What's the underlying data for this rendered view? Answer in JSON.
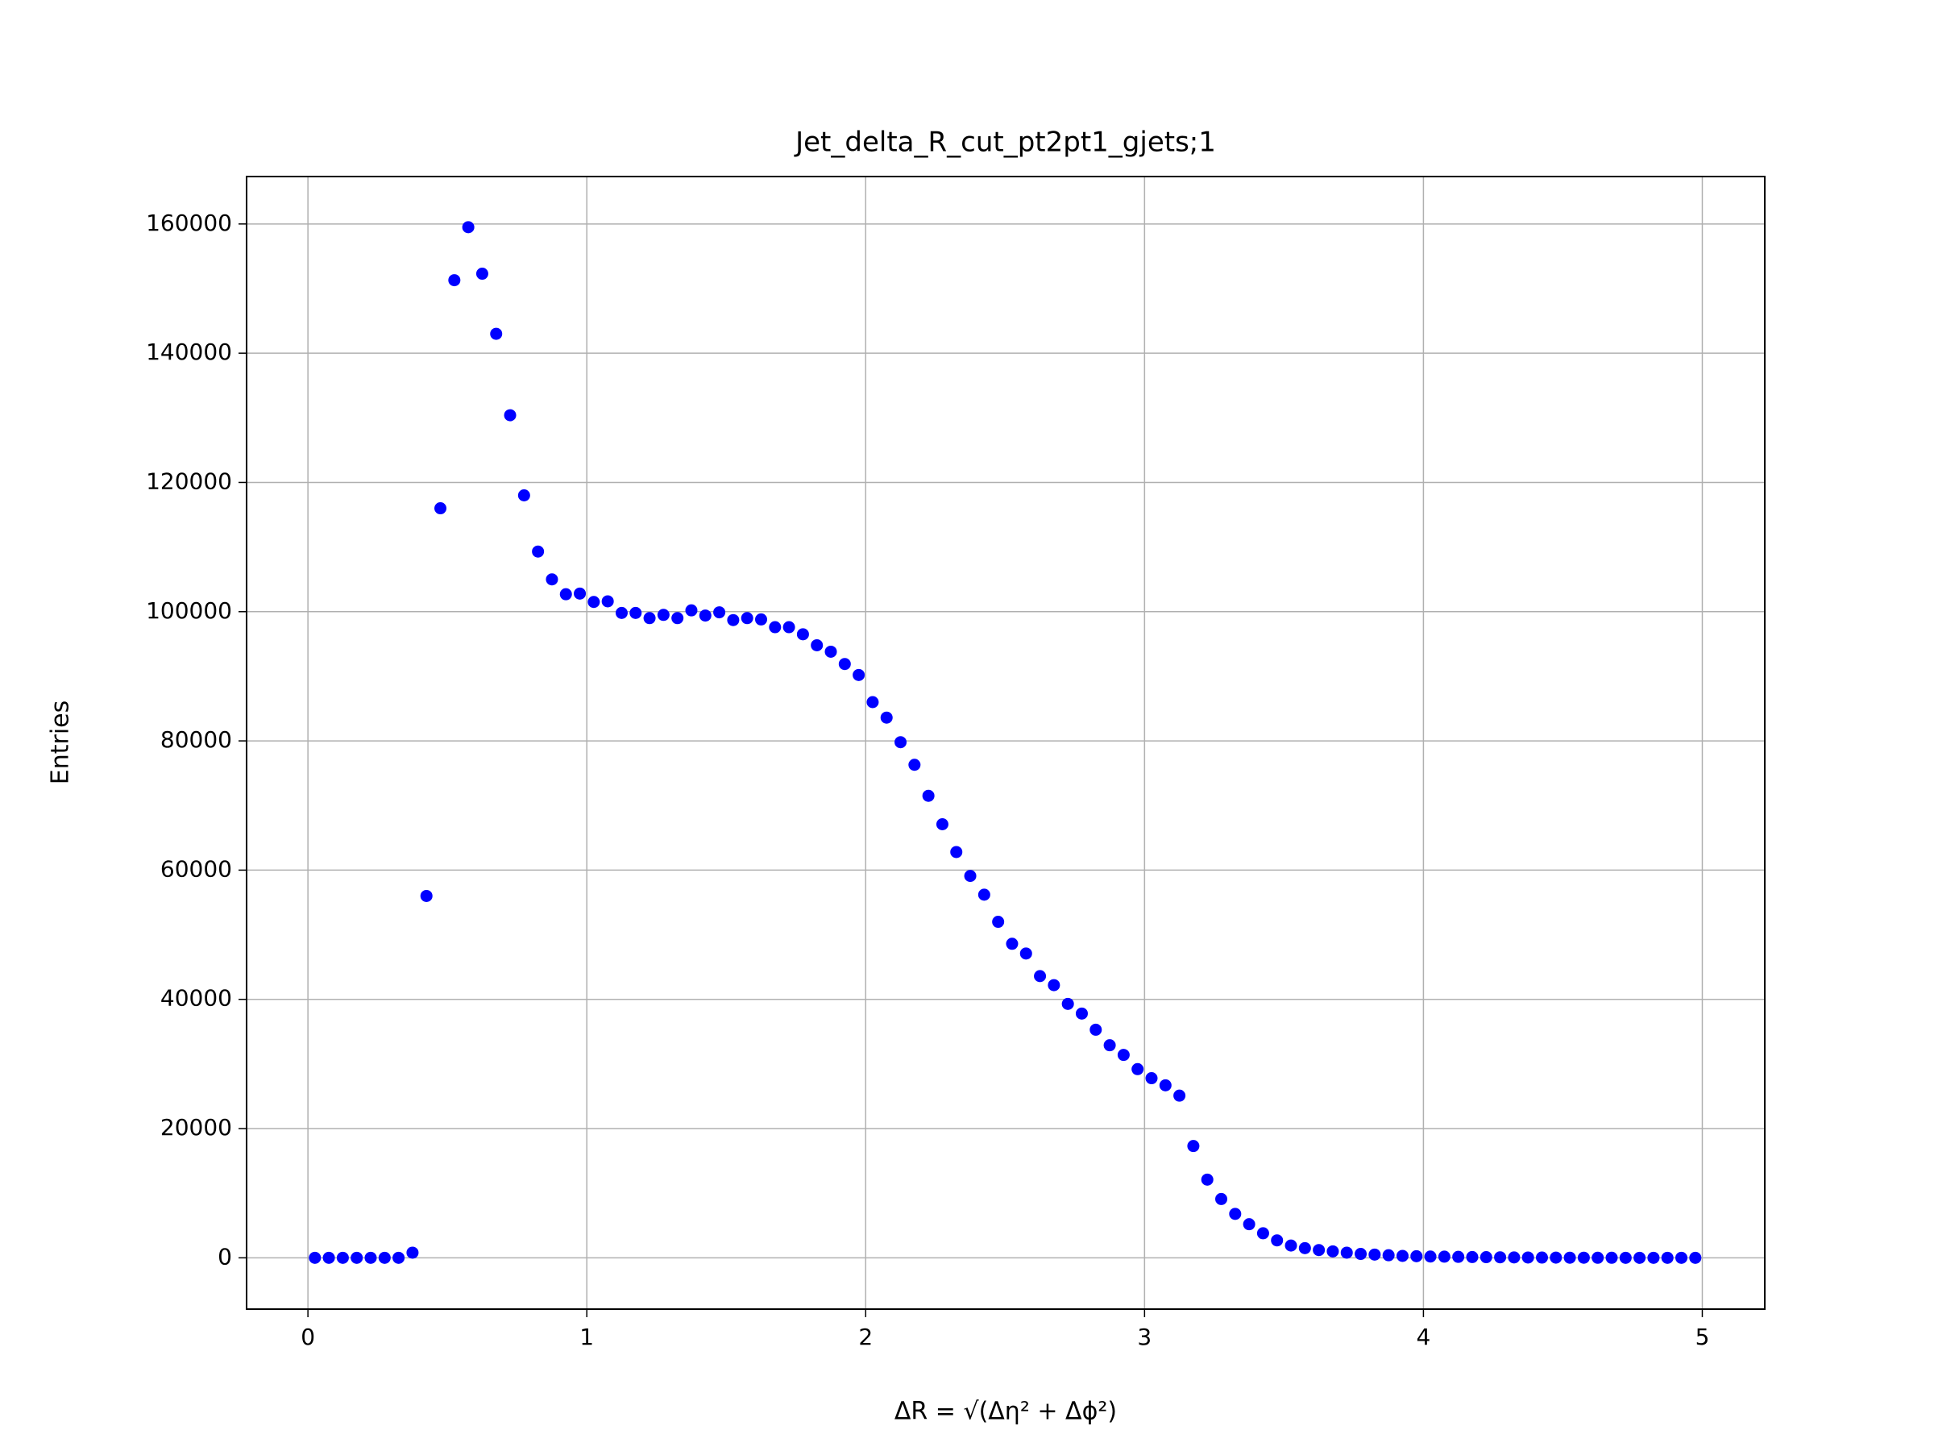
{
  "chart_data": {
    "type": "scatter",
    "title": "Jet_delta_R_cut_pt2pt1_gjets;1",
    "x_label": "ΔR = √(Δη² + Δϕ²)",
    "y_label": "Entries",
    "color": "#0000ff",
    "grid": true,
    "xlim": [
      -0.22,
      5.224
    ],
    "ylim": [
      -7940,
      167340
    ],
    "xticks": [
      0,
      1,
      2,
      3,
      4,
      5
    ],
    "yticks": [
      0,
      20000,
      40000,
      60000,
      80000,
      100000,
      120000,
      140000,
      160000
    ],
    "x": [
      0.025,
      0.075,
      0.125,
      0.175,
      0.225,
      0.275,
      0.325,
      0.375,
      0.425,
      0.475,
      0.525,
      0.575,
      0.625,
      0.675,
      0.725,
      0.775,
      0.825,
      0.875,
      0.925,
      0.975,
      1.025,
      1.075,
      1.125,
      1.175,
      1.225,
      1.275,
      1.325,
      1.375,
      1.425,
      1.475,
      1.525,
      1.575,
      1.625,
      1.675,
      1.725,
      1.775,
      1.825,
      1.875,
      1.925,
      1.975,
      2.025,
      2.075,
      2.125,
      2.175,
      2.225,
      2.275,
      2.325,
      2.375,
      2.425,
      2.475,
      2.525,
      2.575,
      2.625,
      2.675,
      2.725,
      2.775,
      2.825,
      2.875,
      2.925,
      2.975,
      3.025,
      3.075,
      3.125,
      3.175,
      3.225,
      3.275,
      3.325,
      3.375,
      3.425,
      3.475,
      3.525,
      3.575,
      3.625,
      3.675,
      3.725,
      3.775,
      3.825,
      3.875,
      3.925,
      3.975,
      4.025,
      4.075,
      4.125,
      4.175,
      4.225,
      4.275,
      4.325,
      4.375,
      4.425,
      4.475,
      4.525,
      4.575,
      4.625,
      4.675,
      4.725,
      4.775,
      4.825,
      4.875,
      4.925,
      4.975
    ],
    "values": [
      0,
      0,
      0,
      0,
      0,
      0,
      0,
      800,
      56000,
      116000,
      151300,
      159500,
      152300,
      143000,
      130400,
      118000,
      109300,
      105000,
      102700,
      102800,
      101500,
      101600,
      99800,
      99800,
      99000,
      99500,
      99000,
      100200,
      99400,
      99900,
      98700,
      99000,
      98800,
      97600,
      97600,
      96500,
      94800,
      93800,
      91900,
      90200,
      86000,
      83600,
      79800,
      76300,
      71500,
      67100,
      62800,
      59100,
      56200,
      52000,
      48600,
      47100,
      43600,
      42200,
      39300,
      37800,
      35300,
      32900,
      31400,
      29200,
      27800,
      26700,
      25100,
      17300,
      12100,
      9100,
      6800,
      5200,
      3800,
      2700,
      1900,
      1500,
      1200,
      1000,
      800,
      600,
      500,
      400,
      300,
      250,
      200,
      180,
      150,
      120,
      100,
      80,
      60,
      50,
      40,
      30,
      20,
      15,
      10,
      8,
      5,
      3,
      2,
      1,
      0,
      0
    ]
  }
}
